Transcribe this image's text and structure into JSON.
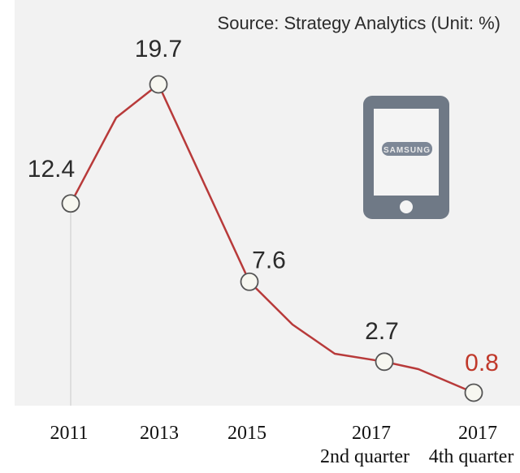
{
  "source": "Source: Strategy Analytics (Unit: %)",
  "colors": {
    "background": "#ffffff",
    "plot_background": "#f2f2f2",
    "line": "#b83a3a",
    "highlight_label": "#c0392b",
    "marker_fill": "#f7f7f0",
    "marker_stroke": "#555555",
    "text": "#2b2b2b",
    "phone_body": "#6f7986",
    "phone_screen": "#f4f4f4"
  },
  "icon": {
    "name": "smartphone-icon",
    "brand_text": "SAMSUNG"
  },
  "chart_data": {
    "type": "line",
    "title": "",
    "xlabel": "",
    "ylabel": "",
    "unit": "%",
    "ylim": [
      0,
      22
    ],
    "grid": false,
    "series": [
      {
        "values": [
          12.4,
          19.7,
          7.6,
          2.7,
          0.8
        ],
        "labels": [
          "12.4",
          "19.7",
          "7.6",
          "2.7",
          "0.8"
        ]
      }
    ],
    "x_ticks": [
      {
        "line1": "2011",
        "line2": ""
      },
      {
        "line1": "2013",
        "line2": ""
      },
      {
        "line1": "2015",
        "line2": ""
      },
      {
        "line1": "2017",
        "line2": "2nd quarter"
      },
      {
        "line1": "2017",
        "line2": "4th quarter"
      }
    ],
    "highlight_last": true
  }
}
